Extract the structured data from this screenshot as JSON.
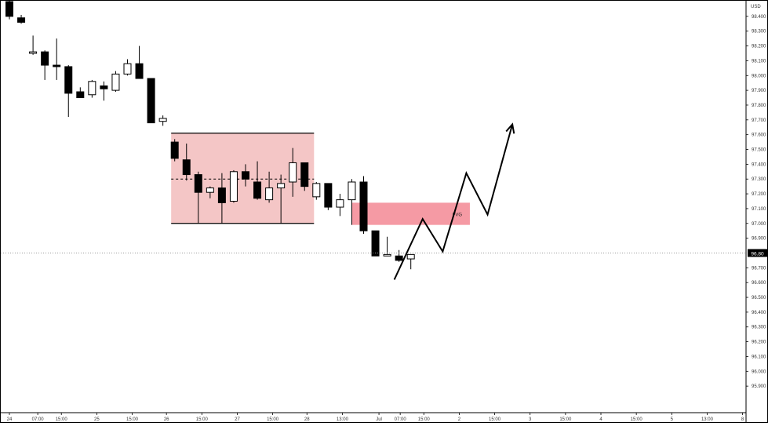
{
  "chart_data": {
    "type": "candlestick",
    "currency": "USD",
    "price_tag": "96.80",
    "fvg_label": "FVG",
    "ylim": [
      95.8,
      98.5
    ],
    "y_ticks": [
      98.4,
      98.3,
      98.2,
      98.1,
      98.0,
      97.9,
      97.8,
      97.7,
      97.6,
      97.5,
      97.4,
      97.3,
      97.2,
      97.1,
      97.0,
      96.9,
      96.7,
      96.6,
      96.5,
      96.4,
      96.3,
      96.2,
      96.1,
      96.0,
      95.9
    ],
    "y_tick_labels": [
      "98.400",
      "98.300",
      "98.200",
      "98.100",
      "98.000",
      "97.900",
      "97.800",
      "97.700",
      "97.600",
      "97.500",
      "97.400",
      "97.300",
      "97.200",
      "97.100",
      "97.000",
      "96.900",
      "96.700",
      "96.600",
      "96.500",
      "96.400",
      "96.300",
      "96.200",
      "96.100",
      "96.000",
      "95.900"
    ],
    "x_tick_labels": [
      "24",
      "07:00",
      "15:00",
      "25",
      "15:00",
      "26",
      "15:00",
      "27",
      "15:00",
      "28",
      "13:00",
      "Jul",
      "07:00",
      "15:00",
      "2",
      "15:00",
      "3",
      "15:00",
      "4",
      "15:00",
      "5",
      "13:00",
      "8"
    ],
    "x_tick_index": [
      0,
      2.4,
      4.4,
      7.4,
      10.4,
      13.3,
      16.3,
      19.3,
      22.3,
      25.2,
      28.2,
      31.3,
      33.1,
      35.1,
      38.1,
      41.1,
      44.1,
      47.1,
      50.1,
      53.1,
      56.1,
      59.1,
      62.1
    ],
    "candles": [
      {
        "i": 0,
        "o": 98.5,
        "h": 98.52,
        "l": 98.38,
        "c": 98.4
      },
      {
        "i": 1,
        "o": 98.39,
        "h": 98.41,
        "l": 98.35,
        "c": 98.36
      },
      {
        "i": 2,
        "o": 98.15,
        "h": 98.27,
        "l": 98.14,
        "c": 98.16
      },
      {
        "i": 3,
        "o": 98.16,
        "h": 98.17,
        "l": 97.97,
        "c": 98.07
      },
      {
        "i": 4,
        "o": 98.07,
        "h": 98.25,
        "l": 97.97,
        "c": 98.06
      },
      {
        "i": 5,
        "o": 98.06,
        "h": 98.07,
        "l": 97.72,
        "c": 97.88
      },
      {
        "i": 6,
        "o": 97.89,
        "h": 97.92,
        "l": 97.85,
        "c": 97.85
      },
      {
        "i": 7,
        "o": 97.87,
        "h": 97.97,
        "l": 97.85,
        "c": 97.96
      },
      {
        "i": 8,
        "o": 97.93,
        "h": 97.96,
        "l": 97.83,
        "c": 97.91
      },
      {
        "i": 9,
        "o": 97.9,
        "h": 98.03,
        "l": 97.89,
        "c": 98.01
      },
      {
        "i": 10,
        "o": 98.01,
        "h": 98.11,
        "l": 98.0,
        "c": 98.08
      },
      {
        "i": 11,
        "o": 98.08,
        "h": 98.2,
        "l": 97.98,
        "c": 97.98
      },
      {
        "i": 12,
        "o": 97.98,
        "h": 97.98,
        "l": 97.68,
        "c": 97.68
      },
      {
        "i": 13,
        "o": 97.69,
        "h": 97.73,
        "l": 97.66,
        "c": 97.71
      },
      {
        "i": 14,
        "o": 97.55,
        "h": 97.57,
        "l": 97.42,
        "c": 97.44
      },
      {
        "i": 15,
        "o": 97.43,
        "h": 97.54,
        "l": 97.29,
        "c": 97.33
      },
      {
        "i": 16,
        "o": 97.33,
        "h": 97.35,
        "l": 97.0,
        "c": 97.21
      },
      {
        "i": 17,
        "o": 97.21,
        "h": 97.25,
        "l": 97.17,
        "c": 97.24
      },
      {
        "i": 18,
        "o": 97.24,
        "h": 97.34,
        "l": 97.0,
        "c": 97.14
      },
      {
        "i": 19,
        "o": 97.15,
        "h": 97.36,
        "l": 97.14,
        "c": 97.35
      },
      {
        "i": 20,
        "o": 97.35,
        "h": 97.4,
        "l": 97.25,
        "c": 97.3
      },
      {
        "i": 21,
        "o": 97.28,
        "h": 97.42,
        "l": 97.16,
        "c": 97.17
      },
      {
        "i": 22,
        "o": 97.16,
        "h": 97.35,
        "l": 97.14,
        "c": 97.24
      },
      {
        "i": 23,
        "o": 97.24,
        "h": 97.33,
        "l": 97.0,
        "c": 97.27
      },
      {
        "i": 24,
        "o": 97.28,
        "h": 97.51,
        "l": 97.18,
        "c": 97.41
      },
      {
        "i": 25,
        "o": 97.41,
        "h": 97.41,
        "l": 97.22,
        "c": 97.25
      },
      {
        "i": 26,
        "o": 97.18,
        "h": 97.28,
        "l": 97.16,
        "c": 97.27
      },
      {
        "i": 27,
        "o": 97.27,
        "h": 97.27,
        "l": 97.09,
        "c": 97.11
      },
      {
        "i": 28,
        "o": 97.11,
        "h": 97.2,
        "l": 97.05,
        "c": 97.16
      },
      {
        "i": 29,
        "o": 97.16,
        "h": 97.3,
        "l": 96.99,
        "c": 97.28
      },
      {
        "i": 30,
        "o": 97.28,
        "h": 97.32,
        "l": 96.93,
        "c": 96.95
      },
      {
        "i": 31,
        "o": 96.95,
        "h": 96.95,
        "l": 96.78,
        "c": 96.78
      },
      {
        "i": 32,
        "o": 96.78,
        "h": 96.91,
        "l": 96.78,
        "c": 96.79
      },
      {
        "i": 33,
        "o": 96.78,
        "h": 96.82,
        "l": 96.74,
        "c": 96.75
      },
      {
        "i": 34,
        "o": 96.76,
        "h": 96.79,
        "l": 96.69,
        "c": 96.79
      }
    ],
    "range_box": {
      "i_start": 13.7,
      "i_end": 25.8,
      "y_top": 97.61,
      "y_bottom": 97.0,
      "midline": 97.3
    },
    "fvg_box": {
      "i_start": 29.0,
      "i_end": 39.0,
      "y_top": 97.14,
      "y_bottom": 96.99
    },
    "projection_path": [
      {
        "i": 32.6,
        "y": 96.62
      },
      {
        "i": 35.0,
        "y": 97.03
      },
      {
        "i": 36.7,
        "y": 96.81
      },
      {
        "i": 38.7,
        "y": 97.34
      },
      {
        "i": 40.5,
        "y": 97.06
      },
      {
        "i": 42.6,
        "y": 97.67
      }
    ],
    "current_price_line": 96.8,
    "colors": {
      "down": "#000000",
      "up": "#ffffff",
      "range": "#f4c6c6",
      "fvg": "#f59aa4",
      "grid_dotted": "#9a9a9a"
    }
  }
}
